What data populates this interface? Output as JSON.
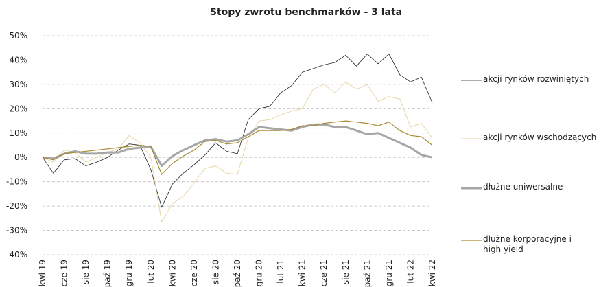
{
  "chart_data": {
    "type": "line",
    "title": "Stopy zwrotu benchmarków - 3 lata",
    "categories": [
      "kwi 19",
      null,
      "cze 19",
      null,
      "sie 19",
      null,
      "paź 19",
      null,
      "gru 19",
      null,
      "lut 20",
      null,
      "kwi 20",
      null,
      "cze 20",
      null,
      "sie 20",
      null,
      "paź 20",
      null,
      "gru 20",
      null,
      "lut 21",
      null,
      "kwi 21",
      null,
      "cze 21",
      null,
      "sie 21",
      null,
      "paź 21",
      null,
      "gru 21",
      null,
      "lut 22",
      null,
      "kwi 22"
    ],
    "ylim": [
      -40,
      50
    ],
    "yticks": [
      {
        "value": -40,
        "label": "-40%"
      },
      {
        "value": -30,
        "label": "-30%"
      },
      {
        "value": -20,
        "label": "-20%"
      },
      {
        "value": -10,
        "label": "-10%"
      },
      {
        "value": 0,
        "label": "0%"
      },
      {
        "value": 10,
        "label": "10%"
      },
      {
        "value": 20,
        "label": "20%"
      },
      {
        "value": 30,
        "label": "30%"
      },
      {
        "value": 40,
        "label": "40%"
      },
      {
        "value": 50,
        "label": "50%"
      }
    ],
    "grid": true,
    "legend": "right",
    "series": [
      {
        "name": "akcji rynków rozwiniętych",
        "color": "#222222",
        "width": 0.8,
        "values": [
          0,
          -6.5,
          -1,
          -0.5,
          -3.5,
          -2,
          0,
          3,
          5.5,
          5,
          -5,
          -20.5,
          -11,
          -6.5,
          -3,
          1,
          6,
          2.5,
          1.5,
          15.5,
          20,
          21,
          26.5,
          29.5,
          35,
          36.5,
          38,
          39,
          42,
          37.5,
          42.5,
          38.5,
          42.5,
          34,
          31,
          33,
          22.5
        ]
      },
      {
        "name": "akcji rynków wschodzących",
        "color": "#e8d6a8",
        "width": 1,
        "values": [
          0,
          -2,
          3,
          2,
          -2,
          0,
          2,
          3.5,
          9,
          6,
          0,
          -26.5,
          -19,
          -16,
          -10.5,
          -4.5,
          -3.5,
          -6.5,
          -7,
          8,
          15,
          15.5,
          17.5,
          19,
          20,
          28,
          30,
          26.5,
          31,
          28,
          30,
          23,
          25,
          24,
          12.5,
          14,
          8
        ]
      },
      {
        "name": "dłużne uniwersalne",
        "color": "#a6a6a6",
        "width": 3,
        "values": [
          0,
          -0.5,
          1.5,
          2.5,
          1.5,
          1.5,
          2,
          2,
          3.5,
          4,
          4.5,
          -3.5,
          0.5,
          3,
          5,
          7,
          7.5,
          6.5,
          7,
          9.5,
          12.5,
          12,
          11.5,
          11,
          12.5,
          13.5,
          13.5,
          12.5,
          12.5,
          11,
          9.5,
          10,
          8,
          6,
          4,
          1,
          0
        ]
      },
      {
        "name": "dłużne korporacyjne i high yield",
        "color": "#a68a2e",
        "width": 1.2,
        "values": [
          0,
          -1,
          1.5,
          2,
          2.5,
          3,
          3.5,
          4,
          4.5,
          5,
          4.5,
          -7,
          -2.5,
          0.5,
          3,
          6.5,
          7,
          5.5,
          6,
          8.5,
          11,
          11,
          11,
          11.5,
          13,
          13,
          14,
          14.5,
          15,
          14.5,
          14,
          13,
          14.5,
          11,
          9,
          8.5,
          5
        ]
      }
    ]
  }
}
